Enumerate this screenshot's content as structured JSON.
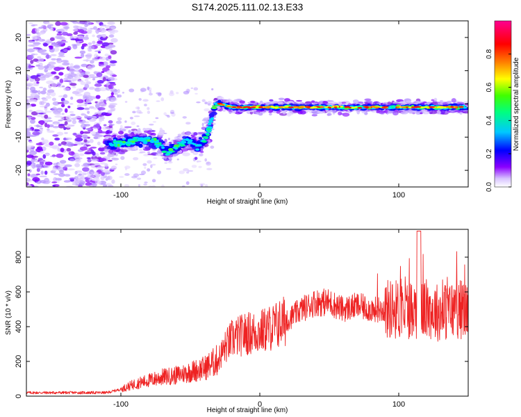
{
  "title": "S174.2025.111.02.13.E33",
  "chart_data": [
    {
      "type": "heatmap",
      "xlabel": "Height of straight line (km)",
      "ylabel": "Frequency (Hz)",
      "xlim": [
        -168,
        150
      ],
      "ylim": [
        -25,
        25
      ],
      "x_ticks": [
        -100,
        0,
        100
      ],
      "y_ticks": [
        -20,
        -10,
        0,
        10,
        20
      ],
      "grid": false,
      "colorbar": {
        "label": "Normalized spectral amplitude",
        "range": [
          0.0,
          1.0
        ],
        "ticks": [
          "0.0",
          "0.2",
          "0.4",
          "0.6",
          "0.8"
        ],
        "colors": [
          "#ffffff",
          "#dcc8ff",
          "#8b00ff",
          "#0000ff",
          "#00c8ff",
          "#00ff40",
          "#ffff00",
          "#ff8000",
          "#ff0000",
          "#ff0080"
        ]
      },
      "ridge": {
        "description_of_track": "frequency peak vs height",
        "x": [
          -110,
          -100,
          -90,
          -80,
          -72,
          -66,
          -60,
          -52,
          -45,
          -38,
          -35,
          -32,
          -28,
          -20,
          -10,
          0,
          10,
          20,
          40,
          60,
          80,
          100,
          120,
          140,
          150
        ],
        "y": [
          -12,
          -12,
          -11,
          -11,
          -12,
          -15,
          -13,
          -11,
          -13,
          -10,
          -5,
          0,
          0,
          -1,
          -1,
          -1,
          -1,
          -1,
          -1,
          -1,
          -1,
          -1,
          -1,
          -1,
          -1
        ]
      }
    },
    {
      "type": "line",
      "xlabel": "Height of straight line (km)",
      "ylabel": "SNR (10 * v/v)",
      "xlim": [
        -168,
        150
      ],
      "ylim": [
        0,
        960
      ],
      "x_ticks": [
        -100,
        0,
        100
      ],
      "y_ticks": [
        0,
        200,
        400,
        600,
        800
      ],
      "grid": false,
      "series": [
        {
          "color": "#ee2222",
          "x": [
            -168,
            -150,
            -130,
            -110,
            -100,
            -90,
            -80,
            -70,
            -60,
            -50,
            -40,
            -30,
            -25,
            -20,
            -10,
            0,
            10,
            20,
            30,
            40,
            50,
            60,
            70,
            80,
            90,
            100,
            110,
            115,
            120,
            130,
            140,
            150
          ],
          "y": [
            20,
            20,
            20,
            20,
            40,
            70,
            90,
            110,
            120,
            140,
            160,
            210,
            280,
            330,
            360,
            370,
            400,
            440,
            500,
            540,
            540,
            500,
            520,
            500,
            500,
            500,
            500,
            500,
            500,
            480,
            500,
            500
          ]
        }
      ]
    }
  ]
}
